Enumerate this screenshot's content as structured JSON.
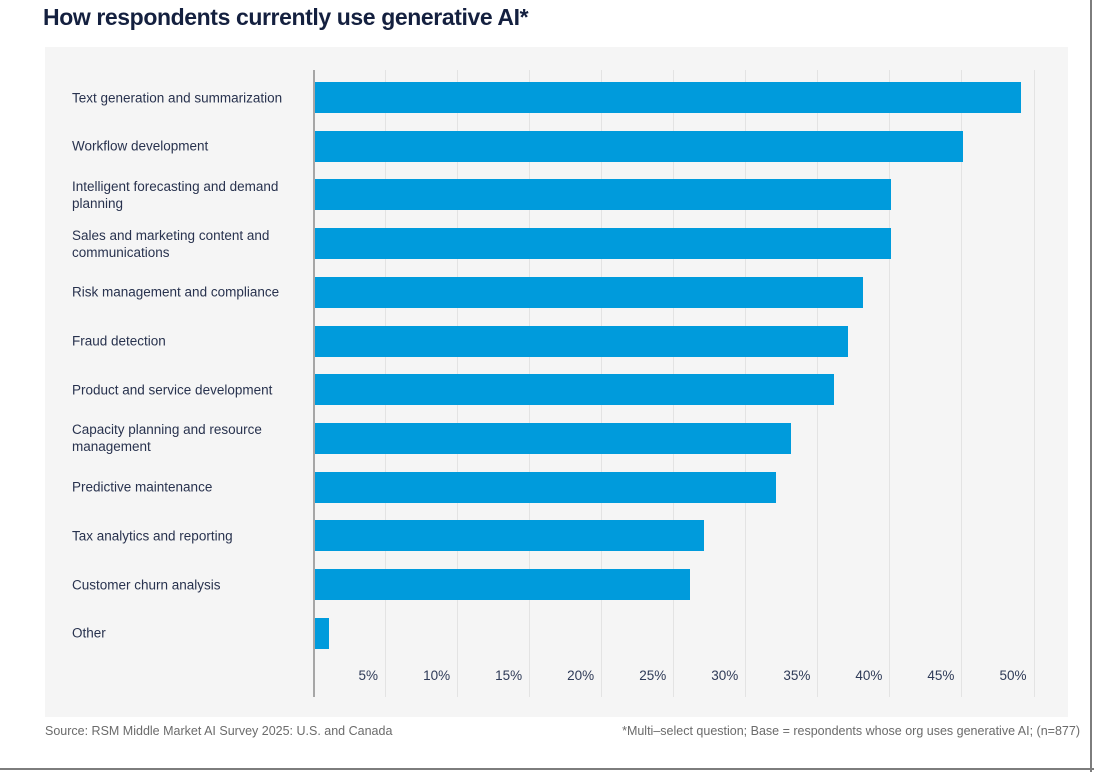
{
  "page": {
    "title": "How respondents currently use generative AI*"
  },
  "chart_data": {
    "type": "bar",
    "orientation": "horizontal",
    "title": "How respondents currently use generative AI*",
    "categories": [
      "Text generation and summarization",
      "Workflow development",
      "Intelligent forecasting and demand planning",
      "Sales and marketing content and communications",
      "Risk management and compliance",
      "Fraud detection",
      "Product and service development",
      "Capacity planning and resource management",
      "Predictive maintenance",
      "Tax analytics and reporting",
      "Customer churn analysis",
      "Other"
    ],
    "values": [
      49,
      45,
      40,
      40,
      38,
      37,
      36,
      33,
      32,
      27,
      26,
      1
    ],
    "unit": "%",
    "x_tick_values": [
      5,
      10,
      15,
      20,
      25,
      30,
      35,
      40,
      45,
      50
    ],
    "x_tick_labels": [
      "5%",
      "10%",
      "15%",
      "20%",
      "25%",
      "30%",
      "35%",
      "40%",
      "45%",
      "50%"
    ],
    "xlim": [
      0,
      52.4
    ],
    "grid": "vertical",
    "legend": "none",
    "bar_color": "#009BDC",
    "plot_background": "#F5F5F5"
  },
  "footer": {
    "source": "Source: RSM Middle Market AI Survey 2025: U.S. and Canada",
    "footnote": "*Multi–select question; Base = respondents whose org uses generative AI; (n=877)"
  },
  "colors": {
    "title_text": "#14203F",
    "category_text": "#28324E",
    "tick_text": "#2E3A57",
    "footer_text": "#6B6B6B",
    "axis_line": "#A6A6A6",
    "gridline": "#E3E3E3",
    "page_border": "#7D7D7D"
  }
}
